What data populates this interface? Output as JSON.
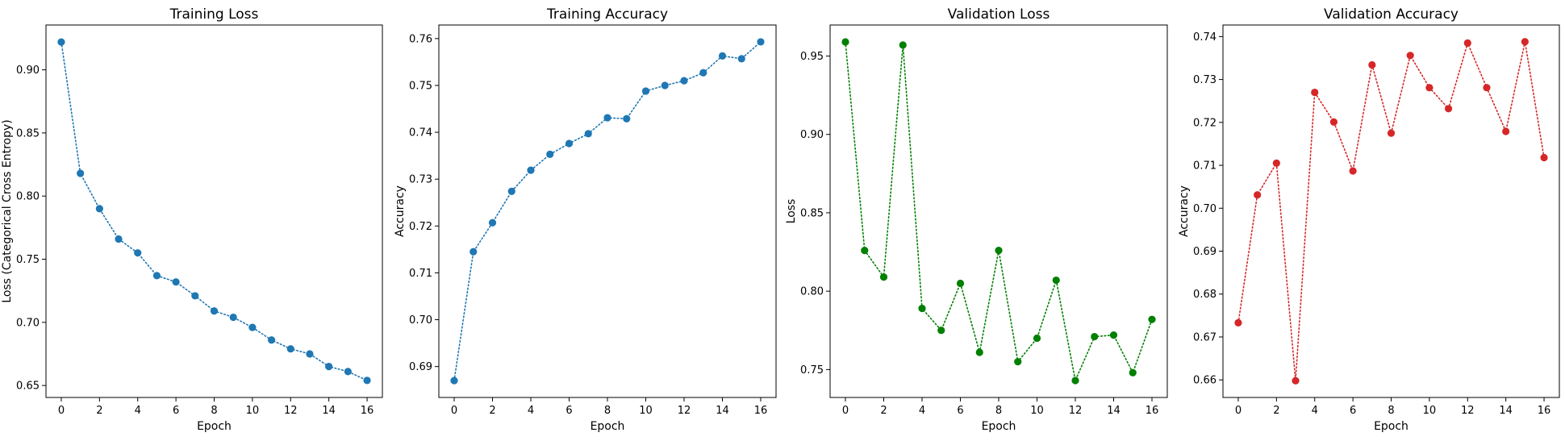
{
  "chart_data": [
    {
      "type": "line",
      "title": "Training Loss",
      "xlabel": "Epoch",
      "ylabel": "Loss (Categorical Cross Entropy)",
      "color": "#1f77b4",
      "line_style": "dotted",
      "marker": "circle",
      "grid": false,
      "x": [
        0,
        1,
        2,
        3,
        4,
        5,
        6,
        7,
        8,
        9,
        10,
        11,
        12,
        13,
        14,
        15,
        16
      ],
      "values": [
        0.922,
        0.818,
        0.79,
        0.766,
        0.755,
        0.737,
        0.732,
        0.721,
        0.709,
        0.704,
        0.696,
        0.686,
        0.679,
        0.675,
        0.665,
        0.661,
        0.654
      ],
      "xlim": [
        -0.8,
        16.8
      ],
      "ylim": [
        0.6405,
        0.9355
      ],
      "xticks": [
        0,
        2,
        4,
        6,
        8,
        10,
        12,
        14,
        16
      ],
      "yticks": [
        0.65,
        0.7,
        0.75,
        0.8,
        0.85,
        0.9
      ],
      "ytick_labels": [
        "0.65",
        "0.70",
        "0.75",
        "0.80",
        "0.85",
        "0.90"
      ]
    },
    {
      "type": "line",
      "title": "Training Accuracy",
      "xlabel": "Epoch",
      "ylabel": "Accuracy",
      "color": "#1f77b4",
      "line_style": "dotted",
      "marker": "circle",
      "grid": false,
      "x": [
        0,
        1,
        2,
        3,
        4,
        5,
        6,
        7,
        8,
        9,
        10,
        11,
        12,
        13,
        14,
        15,
        16
      ],
      "values": [
        0.687,
        0.7145,
        0.7207,
        0.7274,
        0.7319,
        0.7353,
        0.7376,
        0.7397,
        0.7431,
        0.7429,
        0.7488,
        0.75,
        0.751,
        0.7527,
        0.7563,
        0.7557,
        0.7593
      ],
      "xlim": [
        -0.8,
        16.8
      ],
      "ylim": [
        0.6834,
        0.7629
      ],
      "xticks": [
        0,
        2,
        4,
        6,
        8,
        10,
        12,
        14,
        16
      ],
      "yticks": [
        0.69,
        0.7,
        0.71,
        0.72,
        0.73,
        0.74,
        0.75,
        0.76
      ],
      "ytick_labels": [
        "0.69",
        "0.70",
        "0.71",
        "0.72",
        "0.73",
        "0.74",
        "0.75",
        "0.76"
      ]
    },
    {
      "type": "line",
      "title": "Validation Loss",
      "xlabel": "Epoch",
      "ylabel": "Loss",
      "color": "#008000",
      "line_style": "dotted",
      "marker": "circle",
      "grid": false,
      "x": [
        0,
        1,
        2,
        3,
        4,
        5,
        6,
        7,
        8,
        9,
        10,
        11,
        12,
        13,
        14,
        15,
        16
      ],
      "values": [
        0.959,
        0.826,
        0.809,
        0.957,
        0.789,
        0.775,
        0.805,
        0.761,
        0.826,
        0.755,
        0.77,
        0.807,
        0.743,
        0.771,
        0.772,
        0.748,
        0.782
      ],
      "xlim": [
        -0.8,
        16.8
      ],
      "ylim": [
        0.7322,
        0.9698
      ],
      "xticks": [
        0,
        2,
        4,
        6,
        8,
        10,
        12,
        14,
        16
      ],
      "yticks": [
        0.75,
        0.8,
        0.85,
        0.9,
        0.95
      ],
      "ytick_labels": [
        "0.75",
        "0.80",
        "0.85",
        "0.90",
        "0.95"
      ]
    },
    {
      "type": "line",
      "title": "Validation Accuracy",
      "xlabel": "Epoch",
      "ylabel": "Accuracy",
      "color": "#d62728",
      "line_style": "dotted",
      "marker": "circle",
      "grid": false,
      "x": [
        0,
        1,
        2,
        3,
        4,
        5,
        6,
        7,
        8,
        9,
        10,
        11,
        12,
        13,
        14,
        15,
        16
      ],
      "values": [
        0.6733,
        0.7031,
        0.7105,
        0.6598,
        0.727,
        0.7201,
        0.7087,
        0.7334,
        0.7175,
        0.7356,
        0.7281,
        0.7232,
        0.7385,
        0.7281,
        0.7179,
        0.7388,
        0.7118
      ],
      "xlim": [
        -0.8,
        16.8
      ],
      "ylim": [
        0.6559,
        0.7427
      ],
      "xticks": [
        0,
        2,
        4,
        6,
        8,
        10,
        12,
        14,
        16
      ],
      "yticks": [
        0.66,
        0.67,
        0.68,
        0.69,
        0.7,
        0.71,
        0.72,
        0.73,
        0.74
      ],
      "ytick_labels": [
        "0.66",
        "0.67",
        "0.68",
        "0.69",
        "0.70",
        "0.71",
        "0.72",
        "0.73",
        "0.74"
      ]
    }
  ]
}
